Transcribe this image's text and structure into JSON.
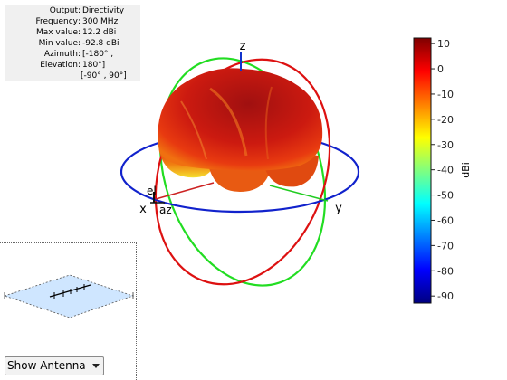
{
  "info": {
    "rows": [
      {
        "key": "Output",
        "value": "Directivity"
      },
      {
        "key": "Frequency",
        "value": "300 MHz"
      },
      {
        "key": "Max value",
        "value": "12.2 dBi"
      },
      {
        "key": "Min value",
        "value": "-92.8 dBi"
      },
      {
        "key": "Azimuth",
        "value": "[-180° ,"
      },
      {
        "key": "Elevation",
        "value": "180°]"
      },
      {
        "key": "",
        "value": "[-90° , 90°]"
      }
    ]
  },
  "axes": {
    "x": "x",
    "y": "y",
    "z": "z",
    "el": "el",
    "az": "az"
  },
  "colorbar": {
    "label": "dBi",
    "ticks": [
      10,
      0,
      -10,
      -20,
      -30,
      -40,
      -50,
      -60,
      -70,
      -80,
      -90
    ],
    "range": [
      -92.8,
      12.2
    ]
  },
  "colors": {
    "x_ring": "#dd1111",
    "y_ring": "#22dd22",
    "z_ring": "#1122cc"
  },
  "control": {
    "selected": "Show Antenna"
  }
}
